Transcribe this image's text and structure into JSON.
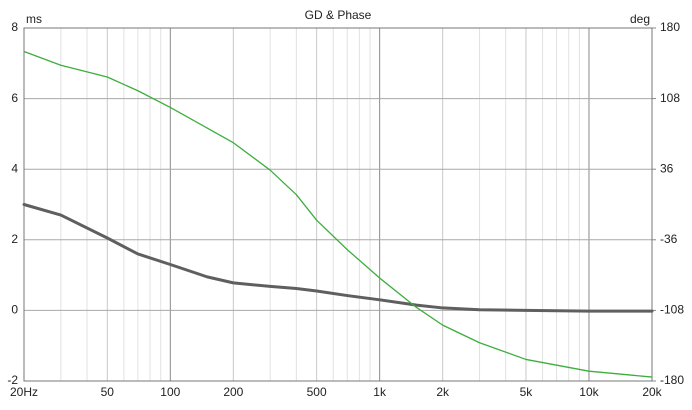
{
  "chart_data": {
    "type": "line",
    "title": "GD & Phase",
    "y_label": "ms",
    "y2_label": "deg",
    "xscale": "log",
    "xlim": [
      20,
      20000
    ],
    "xticks": [
      {
        "value": 20,
        "label": "20Hz"
      },
      50,
      100,
      200,
      500,
      {
        "value": 1000,
        "label": "1k"
      },
      {
        "value": 2000,
        "label": "2k"
      },
      {
        "value": 5000,
        "label": "5k"
      },
      {
        "value": 10000,
        "label": "10k"
      },
      {
        "value": 20000,
        "label": "20k"
      }
    ],
    "minor_xgrid": [
      30,
      40,
      60,
      70,
      80,
      90,
      300,
      400,
      600,
      700,
      800,
      900,
      3000,
      4000,
      6000,
      7000,
      8000,
      9000
    ],
    "ylim": [
      -2,
      8
    ],
    "yticks": [
      -2,
      0,
      2,
      4,
      6,
      8
    ],
    "y2lim": [
      -180,
      180
    ],
    "y2ticks": [
      -180,
      -108,
      -36,
      36,
      108,
      180
    ],
    "grid": true,
    "x": [
      20,
      30,
      50,
      70,
      100,
      150,
      200,
      300,
      400,
      500,
      700,
      1000,
      1500,
      2000,
      3000,
      5000,
      10000,
      20000
    ],
    "series": [
      {
        "name": "GD",
        "color": "#5f5f5f",
        "values": [
          3.0,
          2.7,
          2.05,
          1.6,
          1.3,
          0.95,
          0.78,
          0.68,
          0.62,
          0.55,
          0.42,
          0.3,
          0.15,
          0.07,
          0.02,
          0.0,
          -0.02,
          -0.02
        ]
      },
      {
        "name": "Phase",
        "color": "#3cae3c",
        "axis": "y2",
        "values": [
          156,
          142,
          130,
          116,
          99,
          78,
          63,
          35,
          10,
          -16,
          -46,
          -75,
          -105,
          -123,
          -141,
          -158,
          -170,
          -176
        ]
      }
    ]
  }
}
